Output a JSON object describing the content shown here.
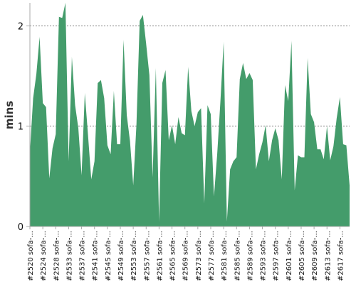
{
  "chart_data": {
    "type": "area",
    "title": "",
    "xlabel": "",
    "ylabel": "mins",
    "ylim": [
      0,
      2.23
    ],
    "y_ticks": [
      0,
      1,
      2
    ],
    "grid": {
      "horizontal": true,
      "vertical": false,
      "style": "dotted"
    },
    "legend": "none",
    "colors": {
      "fill": "#449c6b",
      "grid": "#555555",
      "axis": "#aaaaaa"
    },
    "x_tick_labels": [
      "#2520 sofa-...",
      "#2524 sofa-...",
      "#2528 sofa-...",
      "#2533 sofa-...",
      "#2537 sofa-...",
      "#2541 sofa-...",
      "#2545 sofa-...",
      "#2549 sofa-...",
      "#2553 sofa-...",
      "#2557 sofa-...",
      "#2561 sofa-...",
      "#2565 sofa-...",
      "#2569 sofa-...",
      "#2573 sofa-...",
      "#2577 sofa-...",
      "#2581 sofa-...",
      "#2585 sofa-...",
      "#2589 sofa-...",
      "#2593 sofa-...",
      "#2597 sofa-...",
      "#2601 sofa-...",
      "#2605 sofa-...",
      "#2609 sofa-...",
      "#2613 sofa-...",
      "#2617 sofa-..."
    ],
    "series": [
      {
        "name": "",
        "values": [
          0.74,
          1.28,
          1.52,
          1.89,
          1.23,
          1.19,
          0.48,
          0.78,
          0.92,
          2.09,
          2.08,
          2.23,
          0.65,
          1.69,
          1.21,
          0.98,
          0.51,
          1.33,
          0.91,
          0.47,
          0.65,
          1.43,
          1.46,
          1.28,
          0.81,
          0.72,
          1.35,
          0.82,
          0.82,
          1.86,
          1.11,
          0.85,
          0.41,
          1.02,
          2.05,
          2.11,
          1.82,
          1.51,
          0.49,
          1.58,
          0.05,
          1.43,
          1.56,
          0.86,
          1.01,
          0.82,
          1.09,
          0.93,
          0.91,
          1.59,
          1.15,
          1.0,
          1.14,
          1.18,
          0.23,
          1.21,
          1.12,
          0.3,
          0.72,
          1.25,
          1.84,
          0.05,
          0.57,
          0.65,
          0.69,
          1.47,
          1.63,
          1.47,
          1.53,
          1.46,
          0.57,
          0.72,
          0.84,
          1.01,
          0.65,
          0.86,
          0.98,
          0.86,
          0.47,
          1.41,
          1.25,
          1.85,
          0.36,
          0.71,
          0.69,
          0.69,
          1.68,
          1.12,
          1.04,
          0.77,
          0.77,
          0.67,
          1.0,
          0.66,
          0.8,
          1.08,
          1.29,
          0.82,
          0.81,
          0.41
        ]
      }
    ]
  }
}
